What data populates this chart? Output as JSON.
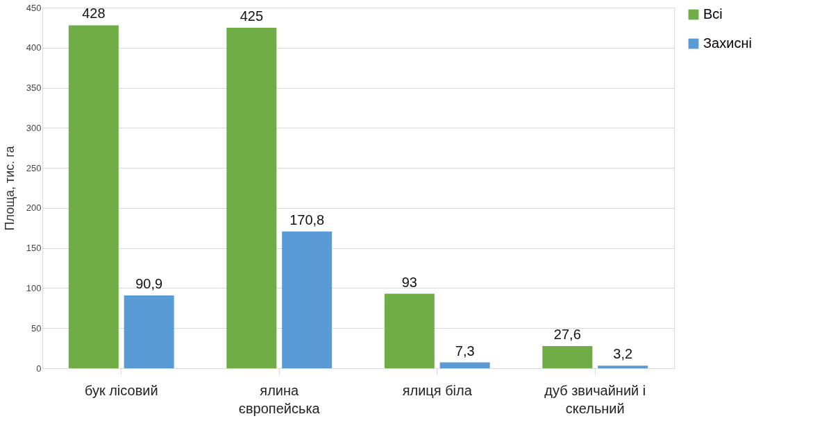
{
  "chart_data": {
    "type": "bar",
    "ylabel": "Площа, тис. га",
    "categories": [
      "бук лісовий",
      "ялина європейська",
      "ялиця біла",
      "дуб звичайний і скельний"
    ],
    "series": [
      {
        "name": "Всі",
        "color": "#70ad47",
        "values": [
          428,
          425,
          93,
          27.6
        ],
        "value_labels": [
          "428",
          "425",
          "93",
          "27,6"
        ]
      },
      {
        "name": "Захисні",
        "color": "#5b9bd5",
        "values": [
          90.9,
          170.8,
          7.3,
          3.2
        ],
        "value_labels": [
          "90,9",
          "170,8",
          "7,3",
          "3,2"
        ]
      }
    ],
    "ylim": [
      0,
      450
    ],
    "yticks": [
      0,
      50,
      100,
      150,
      200,
      250,
      300,
      350,
      400,
      450
    ],
    "grid": "y",
    "legend": "right"
  }
}
